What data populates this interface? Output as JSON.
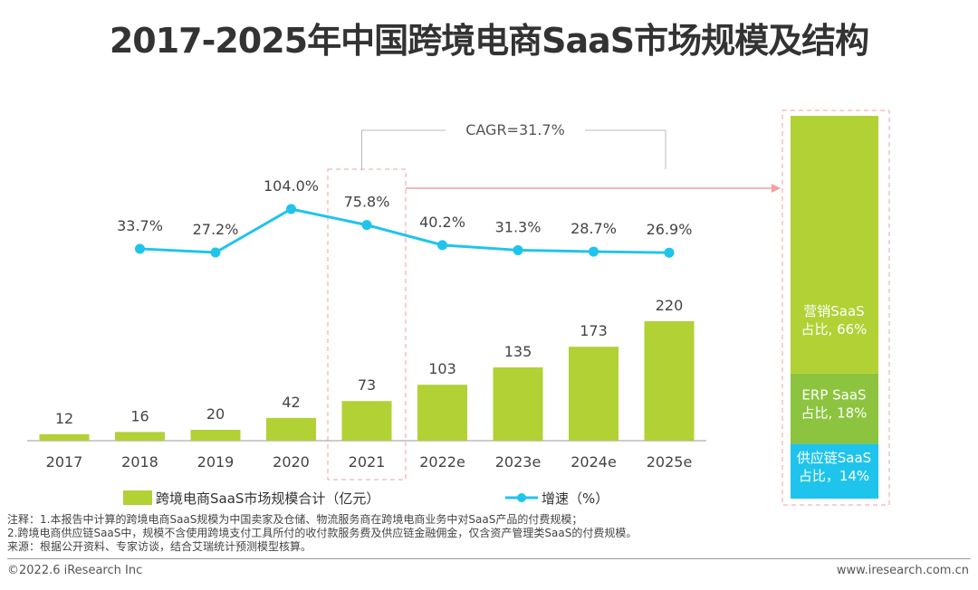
{
  "chart_data": {
    "type": "bar+line",
    "title": "2017-2025年中国跨境电商SaaS市场规模及结构",
    "categories": [
      "2017",
      "2018",
      "2019",
      "2020",
      "2021",
      "2022e",
      "2023e",
      "2024e",
      "2025e"
    ],
    "series": [
      {
        "name": "跨境电商SaaS市场规模合计（亿元）",
        "type": "bar",
        "color": "#b1d135",
        "values": [
          12,
          16,
          20,
          42,
          73,
          103,
          135,
          173,
          220
        ]
      },
      {
        "name": "增速（%）",
        "type": "line",
        "color": "#1fc4ec",
        "values": [
          null,
          33.7,
          27.2,
          104.0,
          75.8,
          40.2,
          31.3,
          28.7,
          26.9
        ],
        "labels": [
          "",
          "33.7%",
          "27.2%",
          "104.0%",
          "75.8%",
          "40.2%",
          "31.3%",
          "28.7%",
          "26.9%"
        ]
      }
    ],
    "annotation": "CAGR=31.7%",
    "highlight": "2021",
    "structure": {
      "type": "stacked-bar",
      "year": "2021",
      "segments": [
        {
          "line1": "营销SaaS",
          "line2": "占比, 66%",
          "value": 66,
          "color": "#b1d135"
        },
        {
          "line1": "ERP SaaS",
          "line2": "占比, 18%",
          "value": 18,
          "color": "#8cc43f"
        },
        {
          "line1": "供应链SaaS",
          "line2": "占比，14%",
          "value": 14,
          "color": "#1fc4ec"
        }
      ]
    },
    "legend": "bottom"
  },
  "notes": [
    "注释：1.本报告中计算的跨境电商SaaS规模为中国卖家及仓储、物流服务商在跨境电商业务中对SaaS产品的付费规模；",
    "2.跨境电商供应链SaaS中，规模不含使用跨境支付工具所付的收付款服务费及供应链金融佣金，仅含资产管理类SaaS的付费规模。",
    "来源：根据公开资料、专家访谈，结合艾瑞统计预测模型核算。"
  ],
  "footer": {
    "left": "©2022.6 iResearch Inc",
    "right": "www.iresearch.com.cn"
  }
}
